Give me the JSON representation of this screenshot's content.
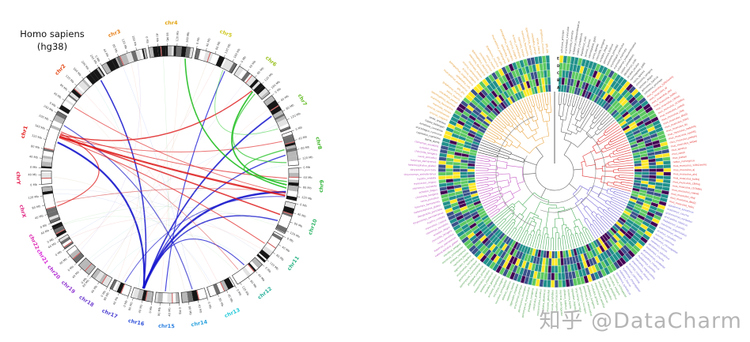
{
  "page": {
    "background": "#ffffff",
    "watermark": {
      "text": "知乎 @DataCharm",
      "color": "#b5b5b5"
    }
  },
  "circos": {
    "title_line1": "Homo sapiens",
    "title_line2": "(hg38)",
    "tick_unit": "Mb",
    "tick_interval_mb": 40,
    "band_seed": 7,
    "chromosomes": [
      {
        "name": "chr1",
        "size_mb": 249,
        "color": "hsl(0,78%,50%)"
      },
      {
        "name": "chr2",
        "size_mb": 242,
        "color": "hsl(15,78%,50%)"
      },
      {
        "name": "chr3",
        "size_mb": 198,
        "color": "hsl(30,80%,50%)"
      },
      {
        "name": "chr4",
        "size_mb": 190,
        "color": "hsl(42,85%,48%)"
      },
      {
        "name": "chr5",
        "size_mb": 182,
        "color": "hsl(58,75%,46%)"
      },
      {
        "name": "chr6",
        "size_mb": 171,
        "color": "hsl(75,70%,45%)"
      },
      {
        "name": "chr7",
        "size_mb": 159,
        "color": "hsl(95,65%,45%)"
      },
      {
        "name": "chr8",
        "size_mb": 145,
        "color": "hsl(110,60%,45%)"
      },
      {
        "name": "chr9",
        "size_mb": 138,
        "color": "hsl(125,58%,45%)"
      },
      {
        "name": "chr10",
        "size_mb": 134,
        "color": "hsl(145,58%,45%)"
      },
      {
        "name": "chr11",
        "size_mb": 135,
        "color": "hsl(160,60%,44%)"
      },
      {
        "name": "chr12",
        "size_mb": 133,
        "color": "hsl(170,62%,43%)"
      },
      {
        "name": "chr13",
        "size_mb": 114,
        "color": "hsl(185,70%,50%)"
      },
      {
        "name": "chr14",
        "size_mb": 107,
        "color": "hsl(200,72%,52%)"
      },
      {
        "name": "chr15",
        "size_mb": 102,
        "color": "hsl(212,74%,52%)"
      },
      {
        "name": "chr16",
        "size_mb": 90,
        "color": "hsl(228,70%,52%)"
      },
      {
        "name": "chr17",
        "size_mb": 83,
        "color": "hsl(245,62%,54%)"
      },
      {
        "name": "chr18",
        "size_mb": 80,
        "color": "hsl(260,60%,54%)"
      },
      {
        "name": "chr19",
        "size_mb": 59,
        "color": "hsl(275,62%,52%)"
      },
      {
        "name": "chr20",
        "size_mb": 64,
        "color": "hsl(288,65%,50%)"
      },
      {
        "name": "chr21",
        "size_mb": 47,
        "color": "hsl(300,70%,50%)"
      },
      {
        "name": "chr22",
        "size_mb": 51,
        "color": "hsl(315,72%,52%)"
      },
      {
        "name": "chrX",
        "size_mb": 156,
        "color": "hsl(330,75%,52%)"
      },
      {
        "name": "chrY",
        "size_mb": 57,
        "color": "hsl(345,78%,50%)"
      }
    ],
    "links_format": [
      "chrom1",
      "pos1_mb",
      "chrom2",
      "pos2_mb",
      "color",
      "width",
      "opacity"
    ],
    "links": [
      [
        "chr16",
        46,
        "chr1",
        122,
        "#1414cc",
        2.2,
        0.9
      ],
      [
        "chr16",
        48,
        "chr2",
        215,
        "#1414cc",
        1.6,
        0.85
      ],
      [
        "chr16",
        44,
        "chr7",
        75,
        "#1414cc",
        1.8,
        0.85
      ],
      [
        "chr16",
        50,
        "chr9",
        108,
        "#1414cc",
        2.4,
        0.9
      ],
      [
        "chr16",
        47,
        "chr8",
        95,
        "#1d1dd6",
        1.4,
        0.8
      ],
      [
        "chr15",
        60,
        "chr5",
        150,
        "#1d1dd6",
        1.2,
        0.8
      ],
      [
        "chr14",
        55,
        "chr1",
        205,
        "#3333cc",
        1.3,
        0.75
      ],
      [
        "chr16",
        45,
        "chr10",
        95,
        "#1414cc",
        1.5,
        0.8
      ],
      [
        "chr16",
        49,
        "chr12",
        60,
        "#1414cc",
        1.2,
        0.75
      ],
      [
        "chr17",
        35,
        "chr9",
        130,
        "#2222cc",
        1.0,
        0.7
      ],
      [
        "chr1",
        148,
        "chr9",
        125,
        "#dd1515",
        2.2,
        0.85
      ],
      [
        "chr1",
        152,
        "chr10",
        65,
        "#dd1515",
        1.6,
        0.8
      ],
      [
        "chr1",
        158,
        "chr6",
        110,
        "#dd1515",
        1.4,
        0.8
      ],
      [
        "chr1",
        165,
        "chrX",
        62,
        "#dd1515",
        1.2,
        0.75
      ],
      [
        "chr1",
        170,
        "chr9",
        45,
        "#e02020",
        1.0,
        0.7
      ],
      [
        "chr1",
        144,
        "chr11",
        70,
        "#e02020",
        1.1,
        0.7
      ],
      [
        "chr2",
        40,
        "chr9",
        115,
        "#e02020",
        1.0,
        0.65
      ],
      [
        "chrX",
        80,
        "chr9",
        110,
        "#d84040",
        0.8,
        0.6
      ],
      [
        "chr1",
        175,
        "chr12",
        95,
        "#d84040",
        0.8,
        0.6
      ],
      [
        "chr1",
        150,
        "chr8",
        30,
        "#dd1515",
        1.0,
        0.6
      ],
      [
        "chr6",
        115,
        "chr9",
        75,
        "#16bb16",
        1.8,
        0.85
      ],
      [
        "chr4",
        160,
        "chr9",
        90,
        "#16bb16",
        1.6,
        0.85
      ],
      [
        "chr8",
        70,
        "chr9",
        60,
        "#2ec42e",
        1.4,
        0.8
      ],
      [
        "chr6",
        130,
        "chr8",
        130,
        "#2ec42e",
        1.2,
        0.75
      ],
      [
        "chr5",
        140,
        "chr7",
        140,
        "#3ecf3e",
        0.9,
        0.6
      ],
      [
        "chr2",
        120,
        "chr13",
        60,
        "#ef9a9a",
        0.5,
        0.4
      ],
      [
        "chr3",
        80,
        "chr14",
        50,
        "#9ab3ef",
        0.5,
        0.4
      ],
      [
        "chr4",
        60,
        "chr15",
        40,
        "#9fd89f",
        0.5,
        0.4
      ],
      [
        "chr5",
        60,
        "chr18",
        40,
        "#d8bd9a",
        0.5,
        0.4
      ],
      [
        "chr3",
        150,
        "chr20",
        30,
        "#c0a8e0",
        0.5,
        0.4
      ],
      [
        "chr2",
        180,
        "chr16",
        70,
        "#93d6cd",
        0.5,
        0.4
      ],
      [
        "chr7",
        40,
        "chr17",
        50,
        "#eab4a0",
        0.5,
        0.4
      ],
      [
        "chr10",
        100,
        "chr19",
        30,
        "#aab6d8",
        0.5,
        0.4
      ],
      [
        "chr11",
        100,
        "chr21",
        25,
        "#ef9a9a",
        0.5,
        0.35
      ],
      [
        "chr12",
        110,
        "chr22",
        35,
        "#9fd89f",
        0.5,
        0.35
      ],
      [
        "chr13",
        90,
        "chrX",
        120,
        "#9ab3ef",
        0.5,
        0.35
      ],
      [
        "chr14",
        90,
        "chr2",
        60,
        "#d8bd9a",
        0.5,
        0.35
      ],
      [
        "chr15",
        80,
        "chr4",
        140,
        "#eab4a0",
        0.5,
        0.35
      ],
      [
        "chr18",
        60,
        "chr6",
        60,
        "#c0a8e0",
        0.5,
        0.35
      ],
      [
        "chr19",
        45,
        "chr8",
        140,
        "#93d6cd",
        0.5,
        0.35
      ],
      [
        "chr20",
        50,
        "chr5",
        100,
        "#ef9a9a",
        0.5,
        0.35
      ],
      [
        "chr21",
        35,
        "chr7",
        120,
        "#9ab3ef",
        0.5,
        0.35
      ],
      [
        "chr22",
        40,
        "chr10",
        120,
        "#9fd89f",
        0.5,
        0.35
      ],
      [
        "chrY",
        30,
        "chr13",
        100,
        "#d8bd9a",
        0.5,
        0.35
      ],
      [
        "chrX",
        140,
        "chr11",
        120,
        "#aab6d8",
        0.5,
        0.35
      ],
      [
        "chr17",
        70,
        "chr3",
        120,
        "#eab4a0",
        0.5,
        0.35
      ],
      [
        "chr18",
        20,
        "chr12",
        40,
        "#93d6cd",
        0.5,
        0.35
      ]
    ]
  },
  "chart_data": [
    {
      "type": "circos",
      "title": "Homo sapiens (hg38)",
      "description": "Circular ideogram of the 24 human chromosomes (chr1-chr22, chrX, chrY) with Giemsa-style banding, Mb tick axes every 40 Mb, and inter-chromosomal link chords (red bundle from chr1, blue bundle converging on chr15/chr16, green chords among chr4/chr6/chr8/chr9, plus many faint pastel chords)."
    },
    {
      "type": "circular-dendrogram-heatmap",
      "title": "",
      "rings": [
        "A",
        "B",
        "C",
        "D",
        "E"
      ],
      "palette_name": "viridis",
      "palette": [
        "#440154",
        "#3b528b",
        "#21918c",
        "#5ec962",
        "#fde725"
      ],
      "clusters": [
        {
          "name": "gray",
          "leaves": 25
        },
        {
          "name": "red",
          "leaves": 29
        },
        {
          "name": "blue",
          "leaves": 23
        },
        {
          "name": "green",
          "leaves": 44
        },
        {
          "name": "magenta",
          "leaves": 26
        },
        {
          "name": "dark",
          "leaves": 6
        },
        {
          "name": "orange",
          "leaves": 33
        }
      ],
      "description": "Circular phylogenetic tree of ~186 species with 5-track viridis heatmap ring (tracks labeled A-E inner to outer) and radial species labels colored by cluster."
    }
  ],
  "dendro": {
    "ring_labels": [
      "A",
      "B",
      "C",
      "D",
      "E"
    ],
    "palette": [
      "#440154",
      "#3b528b",
      "#21918c",
      "#5ec962",
      "#fde725"
    ],
    "heat_seed": 11,
    "tree_seed": 5,
    "groups": [
      {
        "name": "cluster-gray",
        "line_color": "#666666",
        "label_color": "#3a3a3a",
        "leaves": 25,
        "labels": [
          "ochotona_princeps",
          "oryctolagus_cuniculus",
          "marmota_marmota",
          "ictidomys_tridecemlineatus",
          "castor_canadensis",
          "dipodomys_ordii",
          "jaculus_jaculus",
          "nannospalax_galili",
          "cavia_aperea",
          "chinchilla_lanigera",
          "octodon_degus",
          "petromus_typicus"
        ]
      },
      {
        "name": "cluster-red",
        "line_color": "#e03030",
        "label_color": "#e03030",
        "leaves": 29,
        "labels": [
          "mus_musculus_129s1svimj",
          "mus_musculus_aj",
          "mus_musculus_akrj",
          "mus_musculus_balbcj",
          "mus_musculus_c3hhej",
          "mus_musculus_c57bl6nj",
          "mus_musculus_casteij",
          "mus_musculus_cbaj",
          "mus_musculus_dba2j",
          "mus_musculus_fvbnj",
          "mus_musculus_lpj",
          "mus_musculus_nodshiltj",
          "mus_musculus_nzohlltj",
          "mus_musculus_pwkphj",
          "mus_musculus_wsbeij",
          "mus_spretus",
          "mus_caroli",
          "mus_pahari",
          "rattus_norvegicus"
        ]
      },
      {
        "name": "cluster-blue",
        "line_color": "#7b6fd8",
        "label_color": "#6a5fd0",
        "leaves": 23,
        "labels": [
          "apodemus_sylvaticus",
          "mastomys_coucha",
          "grammomys_surdaster",
          "arvicanthis_niloticus",
          "rhabdomys_pumilio",
          "meriones_unguiculatus",
          "psammomys_obesus",
          "acomys_russatus",
          "acomys_cahirinus",
          "hydromys_chrysogaster",
          "notomys_fuscus"
        ]
      },
      {
        "name": "cluster-green",
        "line_color": "#4fae5f",
        "label_color": "#449a44",
        "leaves": 44,
        "labels": [
          "microtus_ochrogaster",
          "microtus_oregoni",
          "arvicola_amphibius",
          "myodes_glareolus",
          "ondatra_zibethicus",
          "mesocricetus_auratus",
          "cricetulus_griseus",
          "phodopus_sungorus",
          "peromyscus_maniculatus",
          "peromyscus_leucopus",
          "onychomys_torridus",
          "sigmodon_hispidus",
          "neotoma_lepida",
          "ellobius_talpinus"
        ]
      },
      {
        "name": "cluster-magenta",
        "line_color": "#c65fc6",
        "label_color": "#bb55bb",
        "leaves": 26,
        "labels": [
          "heterocephalus_glaber",
          "fukomys_damarensis",
          "cavia_porcellus",
          "chinchilla_lanigera",
          "octodon_degus",
          "ctenomys_sociabilis",
          "myocastor_coypus",
          "hystrix_cristata",
          "thryonomys_swinderianus",
          "dasyprocta_punctata"
        ]
      },
      {
        "name": "cluster-dark",
        "line_color": "#444444",
        "label_color": "#333333",
        "leaves": 6,
        "labels": [
          "dama_dama",
          "capreolus_capreolus",
          "oryctolagus_cuniculus",
          "ochotona_curzoniae",
          "tupaia_belangeri",
          "sorex_araneus"
        ]
      },
      {
        "name": "cluster-orange",
        "line_color": "#e8a33d",
        "label_color": "#e2992f",
        "leaves": 33,
        "labels": [
          "sciurus_vulgaris",
          "sciurus_carolinensis",
          "marmota_monax",
          "marmota_flaviventris",
          "spermophilus_dauricus",
          "urocitellus_parryii",
          "xerus_inauris",
          "graphiurus_murinus",
          "glis_glis",
          "muscardinus_avellanarius",
          "aplodontia_rufa",
          "perognathus_longimembris"
        ]
      }
    ]
  }
}
